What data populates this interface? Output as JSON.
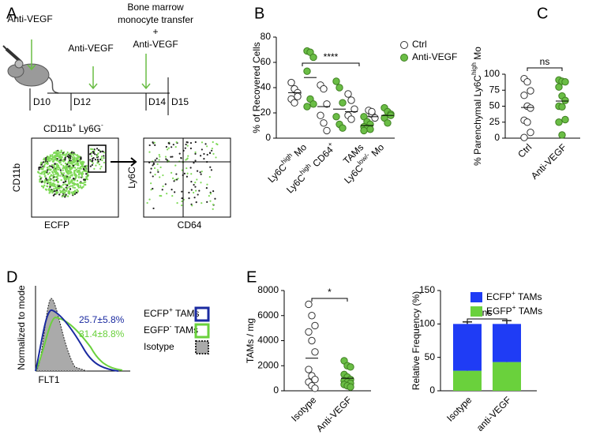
{
  "panel_labels": [
    "A",
    "B",
    "C",
    "D",
    "E"
  ],
  "timeline": {
    "steps": [
      {
        "label": "Anti-VEGF",
        "day": "D10"
      },
      {
        "label": "Anti-VEGF",
        "day": "D12"
      },
      {
        "label_lines": [
          "Bone marrow",
          "monocyte transfer",
          "+",
          "Anti-VEGF"
        ],
        "day": "D14"
      },
      {
        "day": "D15"
      }
    ]
  },
  "flow": {
    "gate_title": [
      "CD11b",
      "+",
      " Ly6G",
      "-"
    ],
    "plots": [
      {
        "xlabel": "ECFP",
        "ylabel": "CD11b"
      },
      {
        "xlabel": "CD64",
        "ylabel": "Ly6C"
      }
    ]
  },
  "histogram": {
    "xlabel": "FLT1",
    "ylabel": "Normalized to mode",
    "annotations": [
      "25.7±5.8%",
      "31.4±8.8%"
    ],
    "legend": [
      [
        "ECFP",
        "+",
        " TAMs"
      ],
      [
        "EGFP",
        "-",
        " TAMs"
      ],
      "Isotype"
    ]
  },
  "chart_data": [
    {
      "type": "strip",
      "ylabel": "% of Recovered Cells",
      "categories": [
        [
          "Ly6C",
          "high",
          " Mo"
        ],
        [
          "Ly6C",
          "high",
          " CD64",
          "+"
        ],
        "TAMs",
        [
          "Ly6C",
          "low/-",
          " Mo"
        ]
      ],
      "series": [
        {
          "name": "Ctrl",
          "color": "#ffffff",
          "values": [
            [
              44,
              39,
              36,
              31,
              28,
              33
            ],
            [
              42,
              39,
              27,
              18,
              12,
              6
            ],
            [
              35,
              30,
              23,
              18,
              15
            ],
            [
              22,
              19,
              16,
              11,
              21
            ]
          ],
          "means": [
            36,
            25,
            21,
            17
          ]
        },
        {
          "name": "Anti-VEGF",
          "color": "#6abd45",
          "values": [
            [
              69,
              68,
              64,
              53,
              31,
              27,
              25
            ],
            [
              45,
              40,
              28,
              17,
              11,
              8
            ],
            [
              17,
              13,
              11,
              9,
              8,
              7,
              6
            ],
            [
              24,
              21,
              19,
              16,
              12,
              18
            ]
          ],
          "means": [
            48,
            23,
            10,
            18
          ]
        }
      ],
      "ylim": [
        0,
        80
      ],
      "yticks": [
        0,
        20,
        40,
        60,
        80
      ],
      "annotation": "****"
    },
    {
      "type": "strip",
      "ylabel": [
        "% Parenchymal Ly6C",
        "high",
        " Mo"
      ],
      "categories": [
        "Ctrl",
        "Anti-VEGF"
      ],
      "colors": [
        "#ffffff",
        "#6abd45"
      ],
      "values": [
        [
          93,
          88,
          74,
          67,
          50,
          47,
          28,
          25,
          9,
          1
        ],
        [
          91,
          89,
          88,
          80,
          66,
          59,
          50,
          49,
          29,
          25,
          5
        ]
      ],
      "means": [
        48,
        58
      ],
      "ylim": [
        0,
        100
      ],
      "yticks": [
        0,
        25,
        50,
        75,
        100
      ],
      "annotation": "ns"
    },
    {
      "type": "strip",
      "ylabel": "TAMs / mg",
      "categories": [
        "Isotype",
        "Anti-VEGF"
      ],
      "colors": [
        "#ffffff",
        "#6abd45"
      ],
      "values": [
        [
          6900,
          6000,
          5200,
          4700,
          4000,
          3100,
          1700,
          1200,
          900,
          700,
          400,
          200
        ],
        [
          2400,
          2000,
          1900,
          1300,
          1100,
          900,
          800,
          700,
          600,
          500,
          400,
          300
        ]
      ],
      "means": [
        2600,
        1000
      ],
      "ylim": [
        0,
        8000
      ],
      "yticks": [
        0,
        2000,
        4000,
        6000,
        8000
      ],
      "annotation": "*"
    },
    {
      "type": "bar",
      "stacked": true,
      "ylabel": "Relative Frequency (%)",
      "categories": [
        "Isotype",
        "anti-VEGF"
      ],
      "series": [
        {
          "name": [
            "EGFP",
            "+",
            " TAMs"
          ],
          "color": "#6ad13c",
          "values": [
            30,
            43
          ],
          "errors": [
            3,
            6
          ]
        },
        {
          "name": [
            "ECFP",
            "+",
            " TAMs"
          ],
          "color": "#1f3cf5",
          "values": [
            70,
            57
          ],
          "errors": [
            3,
            5
          ]
        }
      ],
      "ylim": [
        0,
        150
      ],
      "yticks": [
        0,
        50,
        100,
        150
      ],
      "annotation": "ns"
    }
  ]
}
